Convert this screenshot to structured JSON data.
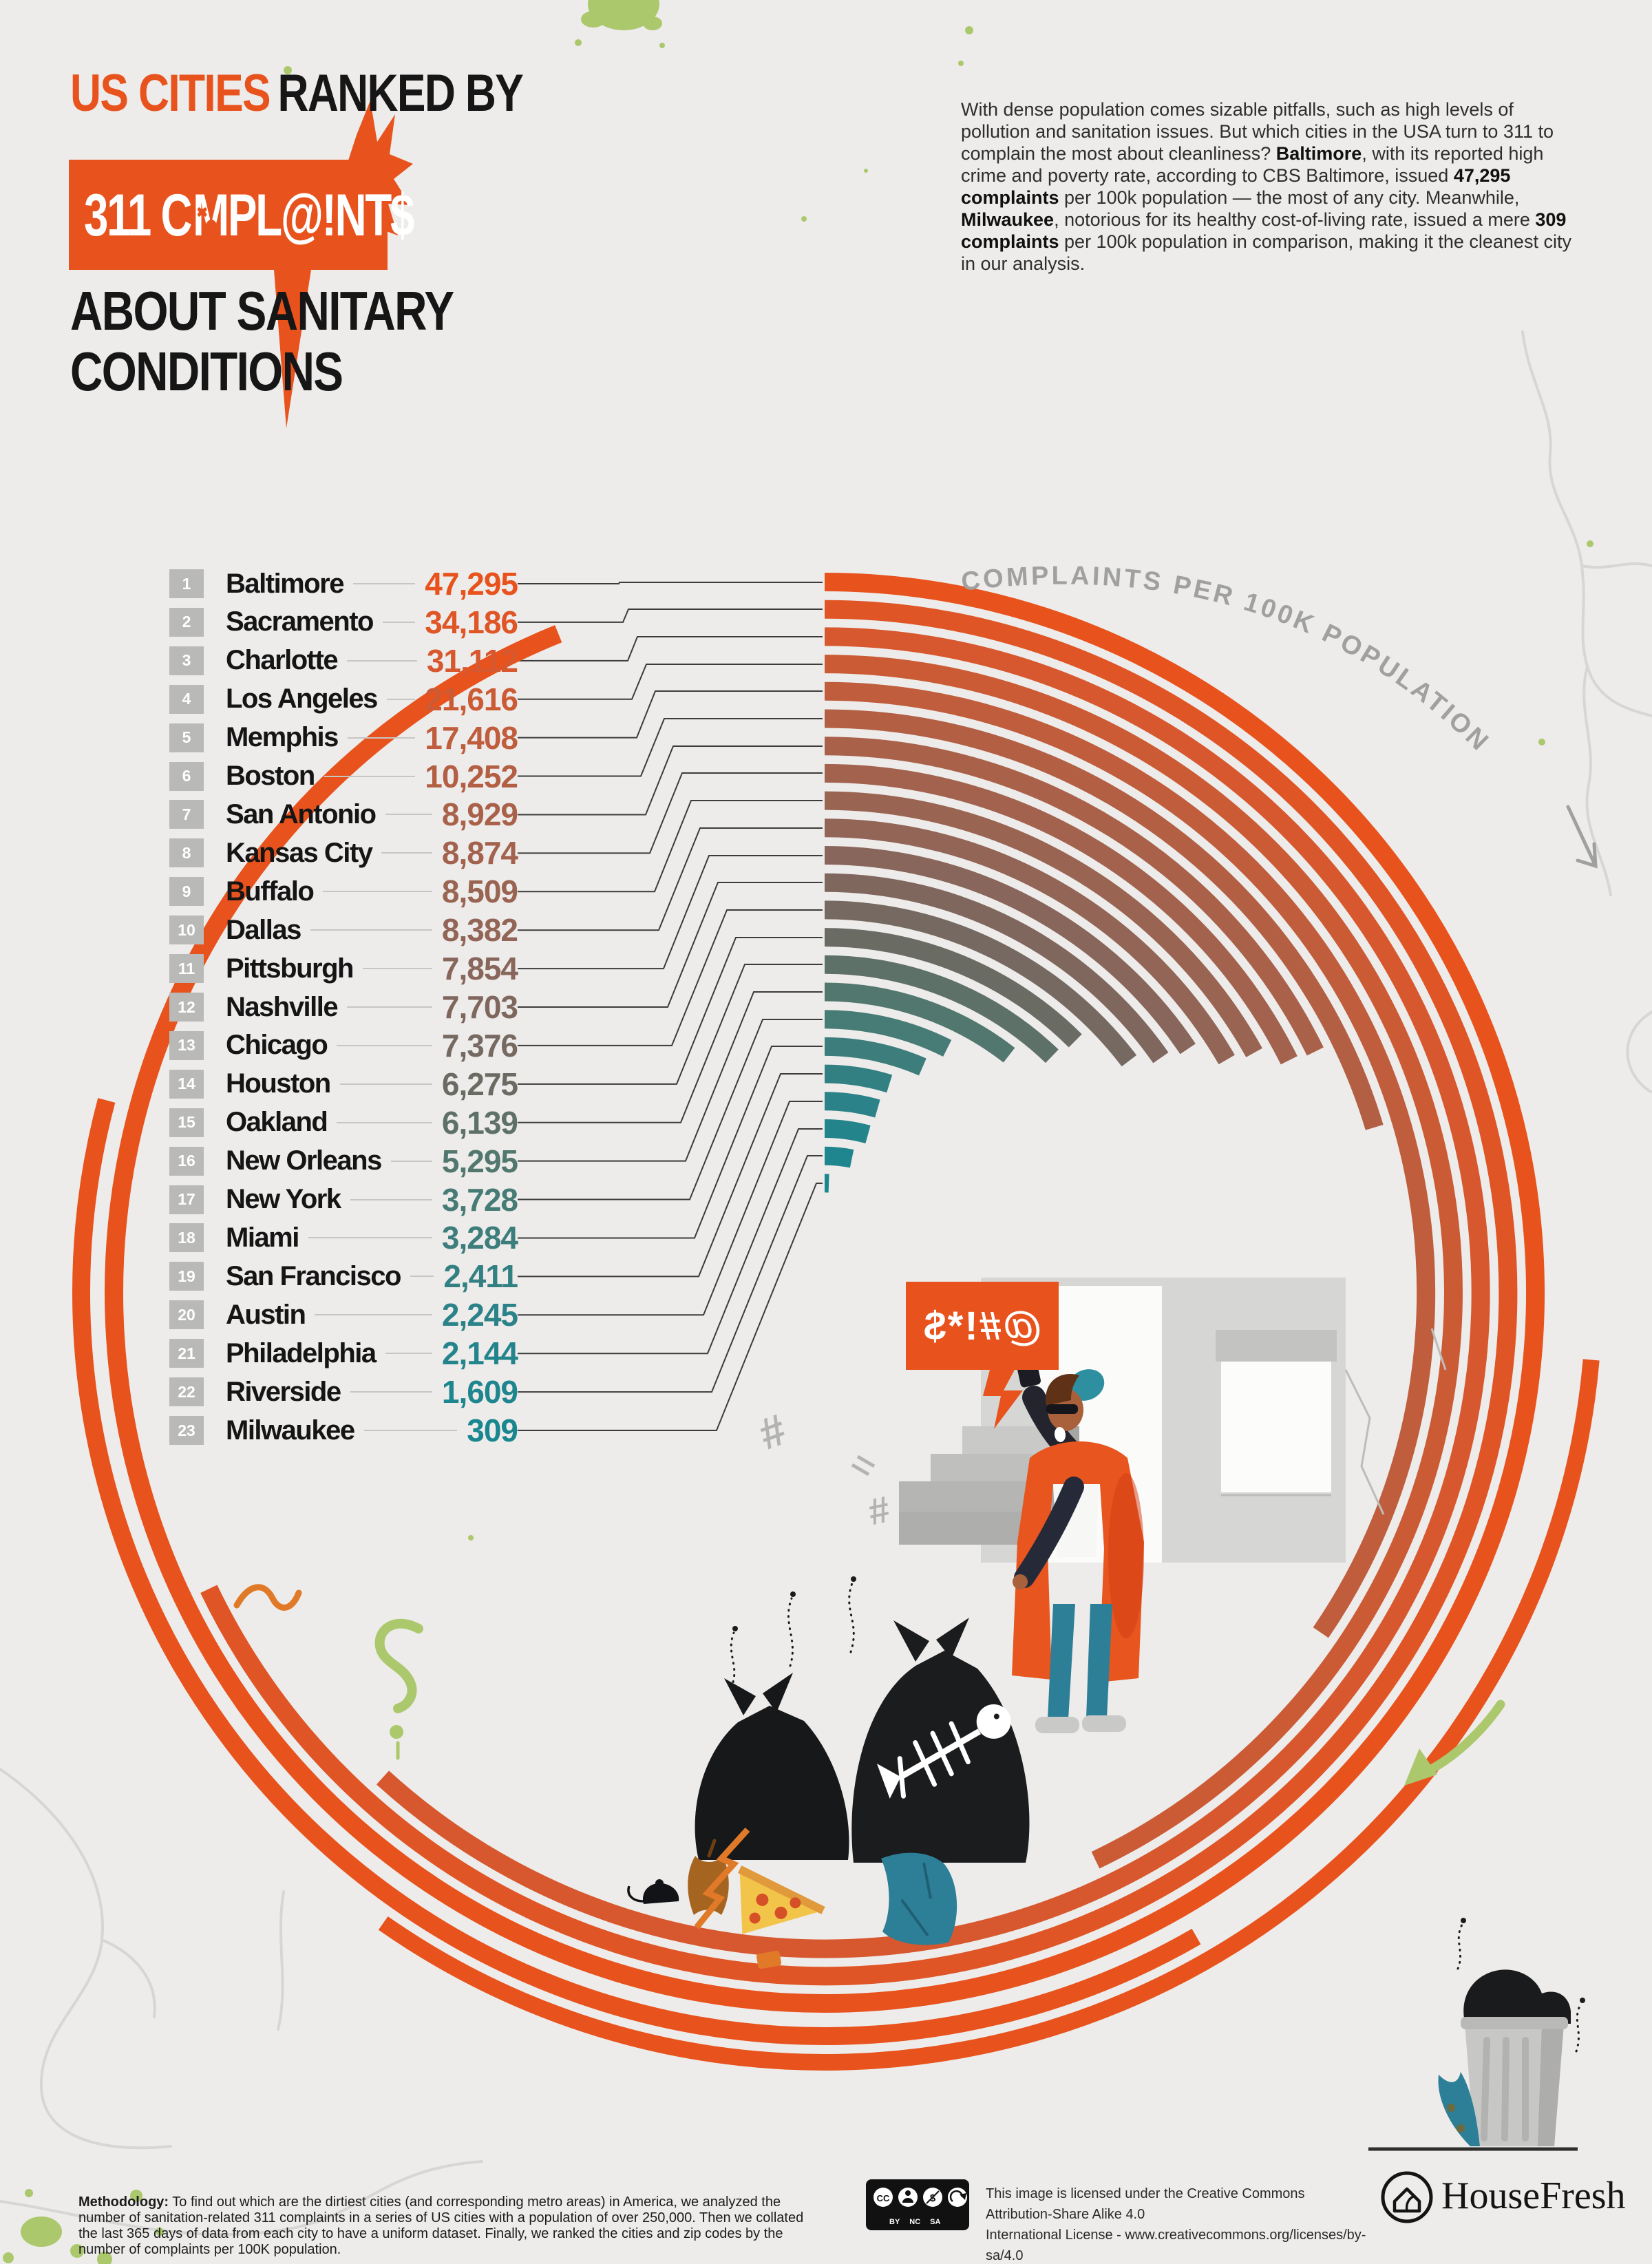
{
  "theme": {
    "orange": "#E8521D",
    "teal": "#2c7f96",
    "green": "#abc86d",
    "gray_label": "#a0a09e",
    "black": "#161616"
  },
  "title": {
    "accent": "US CITIES",
    "rest": "RANKED BY",
    "banner_pre": "311 C",
    "banner_post": "MPL@!NT$",
    "sub_line1": "ABOUT SANITARY",
    "sub_line2": "CONDITIONS"
  },
  "intro": {
    "segments": [
      {
        "t": "With dense population comes sizable pitfalls, such as high levels of pollution and sanitation issues. But which cities in the USA turn to 311 to complain the most about cleanliness? ",
        "b": false
      },
      {
        "t": "Baltimore",
        "b": true
      },
      {
        "t": ", with its reported high crime and poverty rate, according to CBS Baltimore, issued ",
        "b": false
      },
      {
        "t": "47,295 complaints",
        "b": true
      },
      {
        "t": " per 100k population — the most of any city. Meanwhile, ",
        "b": false
      },
      {
        "t": "Milwaukee",
        "b": true
      },
      {
        "t": ", notorious for its healthy cost-of-living rate, issued a mere ",
        "b": false
      },
      {
        "t": "309 complaints",
        "b": true
      },
      {
        "t": " per 100k population in comparison, making it the cleanest city in our analysis.",
        "b": false
      }
    ]
  },
  "chart_data": {
    "type": "bar",
    "subtype": "radial-bar",
    "title": "US Cities ranked by 311 complaints about sanitary conditions",
    "ylabel": "COMPLAINTS PER 100K POPULATION",
    "ranks": [
      1,
      2,
      3,
      4,
      5,
      6,
      7,
      8,
      9,
      10,
      11,
      12,
      13,
      14,
      15,
      16,
      17,
      18,
      19,
      20,
      21,
      22,
      23
    ],
    "categories": [
      "Baltimore",
      "Sacramento",
      "Charlotte",
      "Los Angeles",
      "Memphis",
      "Boston",
      "San Antonio",
      "Kansas City",
      "Buffalo",
      "Dallas",
      "Pittsburgh",
      "Nashville",
      "Chicago",
      "Houston",
      "Oakland",
      "New Orleans",
      "New York",
      "Miami",
      "San Francisco",
      "Austin",
      "Philadelphia",
      "Riverside",
      "Milwaukee"
    ],
    "values": [
      47295,
      34186,
      31112,
      21616,
      17408,
      10252,
      8929,
      8874,
      8509,
      8382,
      7854,
      7703,
      7376,
      6275,
      6139,
      5295,
      3728,
      3284,
      2411,
      2245,
      2144,
      1609,
      309
    ],
    "value_labels": [
      "47,295",
      "34,186",
      "31,112",
      "21,616",
      "17,408",
      "10,252",
      "8,929",
      "8,874",
      "8,509",
      "8,382",
      "7,854",
      "7,703",
      "7,376",
      "6,275",
      "6,139",
      "5,295",
      "3,728",
      "3,284",
      "2,411",
      "2,245",
      "2,144",
      "1,609",
      "309"
    ],
    "colors": [
      "#E8521D",
      "#DF5526",
      "#D7582E",
      "#CB5B35",
      "#BF5D3D",
      "#B35F44",
      "#AA6149",
      "#A2624E",
      "#9A6452",
      "#926556",
      "#89665B",
      "#80675E",
      "#766961",
      "#6A6B62",
      "#5E7168",
      "#52776E",
      "#477B76",
      "#3D7E7D",
      "#338083",
      "#2B8288",
      "#24848C",
      "#1F858E",
      "#1A868F"
    ],
    "angle_range_deg": [
      0,
      338
    ],
    "legend": "none",
    "grid": false
  },
  "bubble": {
    "text": "@#!*$"
  },
  "footer": {
    "methodology_label": "Methodology:",
    "methodology_text": " To find out which are the dirtiest cities (and corresponding metro areas) in America, we analyzed the number of sanitation-related 311 complaints in a series of US cities with a population of over 250,000. Then we collated the last 365 days of data from each city to have a uniform dataset. Finally, we ranked the cities and zip codes by the number of complaints per 100K population.",
    "license_line1": "This image is licensed under the Creative Commons Attribution-Share Alike 4.0",
    "license_line2": "International License - www.creativecommons.org/licenses/by-sa/4.0",
    "cc_labels": [
      "BY",
      "NC",
      "SA"
    ],
    "brand": "HouseFresh"
  }
}
